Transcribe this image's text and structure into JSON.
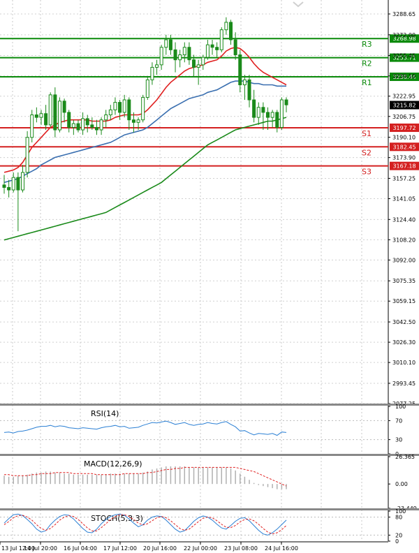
{
  "colors": {
    "resistance": "#0a8a0a",
    "support": "#d42020",
    "ma_short": "#e02020",
    "ma_mid": "#3a6fb0",
    "ma_long": "#1a8a1a",
    "candle": "#1a8a1a",
    "indicator": "#2a7fd4",
    "signal": "#e02020"
  },
  "chart_data": {
    "type": "candlestick",
    "price_axis": {
      "min": 2977.25,
      "max": 3288.65,
      "ticks": [
        "3288.65",
        "3272.00",
        "3255.45",
        "3239.10",
        "3222.95",
        "3206.75",
        "3190.10",
        "3173.90",
        "3157.25",
        "3141.05",
        "3124.40",
        "3108.20",
        "3092.00",
        "3075.35",
        "3059.15",
        "3042.50",
        "3026.30",
        "3010.10",
        "2993.45",
        "2977.25"
      ]
    },
    "time_axis": {
      "ticks": [
        "13 Jul 12:00",
        "14 Jul 20:00",
        "16 Jul 04:00",
        "17 Jul 12:00",
        "20 Jul 16:00",
        "22 Jul 00:00",
        "23 Jul 08:00",
        "24 Jul 16:00"
      ]
    },
    "levels": [
      {
        "name": "R3",
        "value": 3268.98,
        "label": "3268.98",
        "type": "resistance"
      },
      {
        "name": "R2",
        "value": 3253.71,
        "label": "3253.71",
        "type": "resistance"
      },
      {
        "name": "R1",
        "value": 3238.44,
        "label": "3238.44",
        "type": "resistance"
      },
      {
        "name": "S1",
        "value": 3197.72,
        "label": "3197.72",
        "type": "support"
      },
      {
        "name": "S2",
        "value": 3182.45,
        "label": "3182.45",
        "type": "support"
      },
      {
        "name": "S3",
        "value": 3167.18,
        "label": "3167.18",
        "type": "support"
      }
    ],
    "current_price": {
      "value": 3215.82,
      "label": "3215.82"
    },
    "candles": [
      [
        3152,
        3160,
        3145,
        3150
      ],
      [
        3150,
        3156,
        3142,
        3148
      ],
      [
        3148,
        3162,
        3146,
        3158
      ],
      [
        3158,
        3162,
        3115,
        3148
      ],
      [
        3148,
        3168,
        3146,
        3162
      ],
      [
        3162,
        3195,
        3158,
        3190
      ],
      [
        3190,
        3212,
        3186,
        3208
      ],
      [
        3208,
        3214,
        3202,
        3206
      ],
      [
        3206,
        3212,
        3200,
        3209
      ],
      [
        3209,
        3216,
        3196,
        3200
      ],
      [
        3200,
        3226,
        3198,
        3224
      ],
      [
        3224,
        3230,
        3190,
        3196
      ],
      [
        3196,
        3222,
        3194,
        3219
      ],
      [
        3219,
        3221,
        3202,
        3210
      ],
      [
        3210,
        3212,
        3194,
        3198
      ],
      [
        3198,
        3204,
        3192,
        3201
      ],
      [
        3201,
        3204,
        3194,
        3196
      ],
      [
        3196,
        3210,
        3192,
        3205
      ],
      [
        3205,
        3208,
        3194,
        3200
      ],
      [
        3200,
        3206,
        3196,
        3198
      ],
      [
        3198,
        3204,
        3192,
        3196
      ],
      [
        3196,
        3206,
        3192,
        3204
      ],
      [
        3204,
        3212,
        3198,
        3208
      ],
      [
        3208,
        3216,
        3204,
        3212
      ],
      [
        3212,
        3222,
        3208,
        3218
      ],
      [
        3218,
        3220,
        3204,
        3210
      ],
      [
        3210,
        3224,
        3206,
        3220
      ],
      [
        3220,
        3222,
        3196,
        3204
      ],
      [
        3204,
        3210,
        3194,
        3202
      ],
      [
        3202,
        3206,
        3196,
        3204
      ],
      [
        3204,
        3224,
        3202,
        3222
      ],
      [
        3222,
        3238,
        3220,
        3236
      ],
      [
        3236,
        3250,
        3232,
        3246
      ],
      [
        3246,
        3252,
        3240,
        3248
      ],
      [
        3248,
        3264,
        3244,
        3262
      ],
      [
        3262,
        3272,
        3256,
        3268
      ],
      [
        3268,
        3272,
        3256,
        3260
      ],
      [
        3260,
        3266,
        3242,
        3252
      ],
      [
        3252,
        3260,
        3246,
        3256
      ],
      [
        3256,
        3266,
        3250,
        3262
      ],
      [
        3262,
        3266,
        3248,
        3252
      ],
      [
        3252,
        3256,
        3238,
        3246
      ],
      [
        3246,
        3252,
        3232,
        3248
      ],
      [
        3248,
        3256,
        3244,
        3254
      ],
      [
        3254,
        3268,
        3252,
        3264
      ],
      [
        3264,
        3268,
        3256,
        3262
      ],
      [
        3262,
        3266,
        3254,
        3260
      ],
      [
        3260,
        3278,
        3258,
        3276
      ],
      [
        3276,
        3286,
        3272,
        3282
      ],
      [
        3282,
        3284,
        3264,
        3268
      ],
      [
        3268,
        3274,
        3252,
        3256
      ],
      [
        3256,
        3260,
        3226,
        3232
      ],
      [
        3232,
        3240,
        3220,
        3236
      ],
      [
        3236,
        3240,
        3214,
        3220
      ],
      [
        3220,
        3228,
        3202,
        3206
      ],
      [
        3206,
        3218,
        3200,
        3214
      ],
      [
        3214,
        3218,
        3196,
        3210
      ],
      [
        3210,
        3214,
        3196,
        3206
      ],
      [
        3206,
        3212,
        3198,
        3210
      ],
      [
        3210,
        3212,
        3194,
        3198
      ],
      [
        3198,
        3222,
        3196,
        3220
      ],
      [
        3220,
        3222,
        3210,
        3216
      ]
    ],
    "ma_short": [
      3162,
      3163,
      3164,
      3166,
      3170,
      3176,
      3182,
      3186,
      3190,
      3194,
      3198,
      3200,
      3202,
      3203,
      3204,
      3204,
      3204,
      3204,
      3204,
      3203,
      3203,
      3203,
      3203,
      3204,
      3206,
      3207,
      3208,
      3208,
      3208,
      3208,
      3209,
      3212,
      3216,
      3220,
      3225,
      3230,
      3234,
      3237,
      3240,
      3243,
      3245,
      3246,
      3247,
      3248,
      3250,
      3251,
      3252,
      3255,
      3259,
      3261,
      3262,
      3261,
      3258,
      3254,
      3249,
      3245,
      3242,
      3240,
      3238,
      3236,
      3234,
      3232
    ],
    "ma_mid": [
      3154,
      3155,
      3156,
      3157,
      3159,
      3161,
      3163,
      3165,
      3168,
      3170,
      3172,
      3174,
      3175,
      3176,
      3177,
      3178,
      3179,
      3180,
      3181,
      3182,
      3183,
      3184,
      3185,
      3186,
      3188,
      3190,
      3192,
      3193,
      3194,
      3195,
      3196,
      3198,
      3201,
      3204,
      3207,
      3210,
      3213,
      3215,
      3217,
      3219,
      3221,
      3222,
      3223,
      3224,
      3226,
      3227,
      3228,
      3230,
      3232,
      3234,
      3235,
      3235,
      3235,
      3234,
      3233,
      3233,
      3232,
      3232,
      3232,
      3231,
      3231,
      3231
    ],
    "ma_long": [
      3108,
      3109,
      3110,
      3111,
      3112,
      3113,
      3114,
      3115,
      3116,
      3117,
      3118,
      3119,
      3120,
      3121,
      3122,
      3123,
      3124,
      3125,
      3126,
      3127,
      3128,
      3129,
      3130,
      3132,
      3134,
      3136,
      3138,
      3140,
      3142,
      3144,
      3146,
      3148,
      3150,
      3152,
      3154,
      3157,
      3160,
      3163,
      3166,
      3169,
      3172,
      3175,
      3178,
      3181,
      3184,
      3186,
      3188,
      3190,
      3192,
      3194,
      3196,
      3197,
      3198,
      3199,
      3200,
      3201,
      3202,
      3203,
      3203,
      3204,
      3205,
      3206
    ],
    "indicators": [
      {
        "name": "RSI(14)",
        "ticks": [
          "100",
          "70",
          "30",
          "0"
        ],
        "min": 0,
        "max": 100,
        "values": [
          45,
          46,
          44,
          47,
          48,
          50,
          53,
          56,
          58,
          58,
          60,
          57,
          59,
          58,
          55,
          54,
          53,
          55,
          54,
          53,
          52,
          55,
          57,
          58,
          60,
          57,
          58,
          54,
          55,
          56,
          60,
          63,
          66,
          65,
          67,
          69,
          66,
          62,
          64,
          66,
          62,
          60,
          62,
          63,
          66,
          64,
          63,
          66,
          68,
          62,
          57,
          48,
          49,
          44,
          40,
          43,
          42,
          41,
          43,
          39,
          46,
          45
        ]
      },
      {
        "name": "MACD(12,26,9)",
        "ticks": [
          "26.365",
          "0.00",
          "-23.449"
        ],
        "min": -23.449,
        "max": 26.365,
        "histogram": [
          8,
          7,
          7,
          8,
          8,
          9,
          10,
          11,
          11,
          12,
          12,
          11,
          11,
          10,
          10,
          9,
          9,
          9,
          9,
          9,
          9,
          9,
          9,
          10,
          10,
          10,
          10,
          10,
          10,
          10,
          11,
          12,
          14,
          15,
          16,
          17,
          17,
          17,
          17,
          17,
          16,
          16,
          16,
          16,
          16,
          16,
          16,
          16,
          16,
          15,
          13,
          10,
          7,
          4,
          1,
          -1,
          -2,
          -3,
          -4,
          -5,
          -5,
          -5
        ],
        "signal": [
          9,
          9,
          8,
          8,
          8,
          8,
          9,
          9,
          10,
          10,
          10,
          11,
          11,
          11,
          11,
          10,
          10,
          10,
          10,
          10,
          9,
          9,
          9,
          9,
          9,
          9,
          10,
          10,
          10,
          10,
          10,
          11,
          11,
          12,
          13,
          14,
          14,
          15,
          15,
          16,
          16,
          16,
          16,
          16,
          16,
          16,
          16,
          16,
          16,
          16,
          16,
          15,
          14,
          13,
          12,
          10,
          8,
          6,
          4,
          2,
          0,
          -2
        ]
      },
      {
        "name": "STOCH(5,3,3)",
        "ticks": [
          "100",
          "80",
          "20",
          "0"
        ],
        "min": 0,
        "max": 100,
        "main": [
          60,
          75,
          88,
          90,
          85,
          72,
          58,
          40,
          30,
          35,
          55,
          70,
          82,
          88,
          86,
          74,
          58,
          42,
          30,
          28,
          40,
          58,
          72,
          82,
          88,
          90,
          86,
          74,
          60,
          48,
          55,
          70,
          80,
          84,
          82,
          70,
          55,
          40,
          30,
          35,
          50,
          66,
          78,
          84,
          80,
          70,
          56,
          44,
          40,
          52,
          66,
          76,
          78,
          68,
          52,
          36,
          24,
          20,
          28,
          40,
          55,
          70
        ],
        "signal": [
          55,
          65,
          78,
          85,
          86,
          80,
          70,
          55,
          42,
          36,
          42,
          55,
          70,
          80,
          85,
          82,
          72,
          58,
          44,
          34,
          34,
          45,
          58,
          72,
          82,
          88,
          88,
          82,
          72,
          60,
          54,
          58,
          68,
          78,
          82,
          78,
          68,
          55,
          42,
          36,
          40,
          52,
          65,
          76,
          80,
          78,
          68,
          56,
          46,
          45,
          52,
          64,
          72,
          74,
          68,
          56,
          42,
          30,
          24,
          28,
          38,
          52
        ]
      }
    ]
  }
}
